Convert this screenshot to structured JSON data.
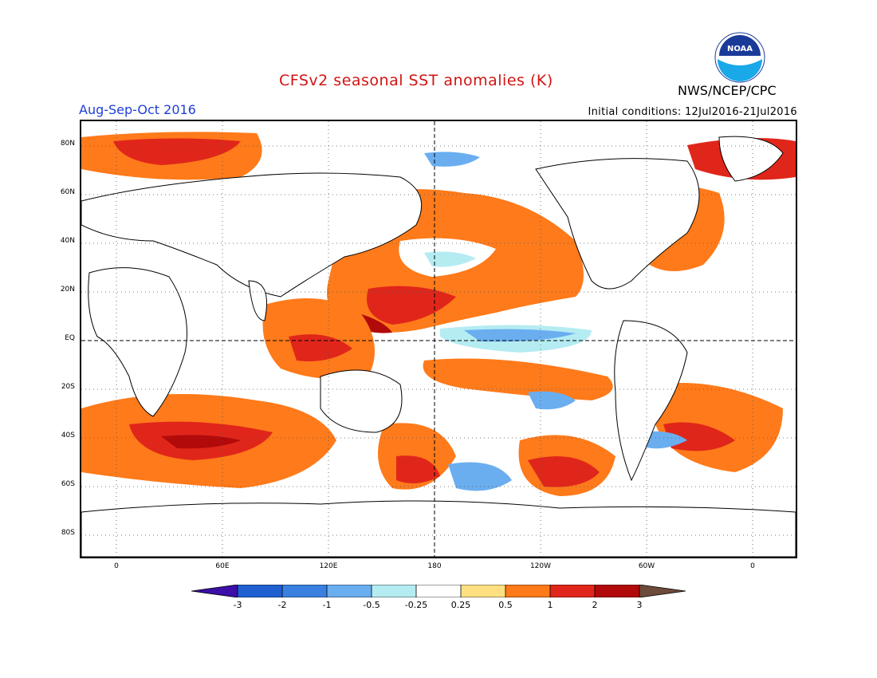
{
  "header": {
    "title": "CFSv2 seasonal SST anomalies (K)",
    "season": "Aug-Sep-Oct 2016",
    "agency": "NWS/NCEP/CPC",
    "initial_conditions": "Initial conditions: 12Jul2016-21Jul2016",
    "logo_text": "NOAA"
  },
  "map": {
    "lat_labels": [
      "80N",
      "60N",
      "40N",
      "20N",
      "EQ",
      "20S",
      "40S",
      "60S",
      "80S"
    ],
    "lon_labels": [
      "0",
      "60E",
      "120E",
      "180",
      "120W",
      "60W",
      "0"
    ]
  },
  "colorbar": {
    "labels": [
      "-3",
      "-2",
      "-1",
      "-0.5",
      "-0.25",
      "0.25",
      "0.5",
      "1",
      "2",
      "3"
    ],
    "colors": {
      "lt_minus3": "#3b0fa8",
      "m3_m2": "#1f5fd0",
      "m2_m1": "#3a80e0",
      "m1_m05": "#6aaef0",
      "m05_m025": "#b4ecf2",
      "m025_025": "#ffffff",
      "p025_05": "#ffe080",
      "p05_1": "#ff7a1a",
      "p1_2": "#e0261a",
      "p2_3": "#b20a0a",
      "gt_3": "#6e4a3a"
    }
  }
}
